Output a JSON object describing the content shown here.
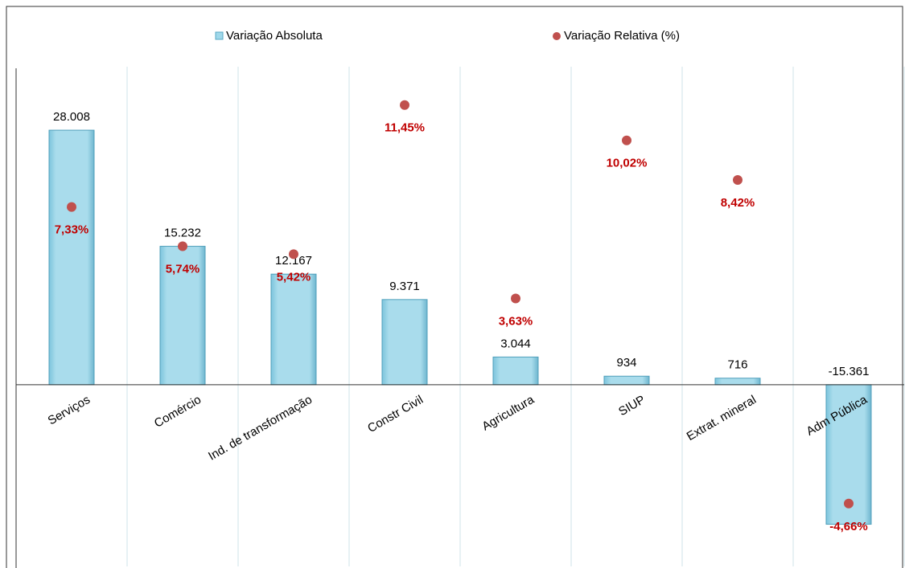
{
  "chart_data": {
    "type": "bar",
    "categories": [
      "Serviços",
      "Comércio",
      "Ind. de transformação",
      "Constr Civil",
      "Agricultura",
      "SIUP",
      "Extrat. mineral",
      "Adm Pública"
    ],
    "series": [
      {
        "name": "Variação Absoluta",
        "color": "#9fd8ea",
        "type": "bar",
        "values": [
          28008,
          15232,
          12167,
          9371,
          3044,
          934,
          716,
          -15361
        ],
        "value_labels": [
          "28.008",
          "15.232",
          "12.167",
          "9.371",
          "3.044",
          "934",
          "716",
          "-15.361"
        ]
      },
      {
        "name": "Variação Relativa (%)",
        "color": "#c0504d",
        "type": "scatter",
        "axis": "y2",
        "values": [
          7.33,
          5.74,
          5.42,
          11.45,
          3.63,
          10.02,
          8.42,
          -4.66
        ],
        "value_labels": [
          "7,33%",
          "5,74%",
          "5,42%",
          "11,45%",
          "3,63%",
          "10,02%",
          "8,42%",
          "-4,66%"
        ]
      }
    ],
    "ylim": [
      -20000,
      35000
    ],
    "y2lim": [
      -7.2,
      13
    ],
    "grid": true
  }
}
